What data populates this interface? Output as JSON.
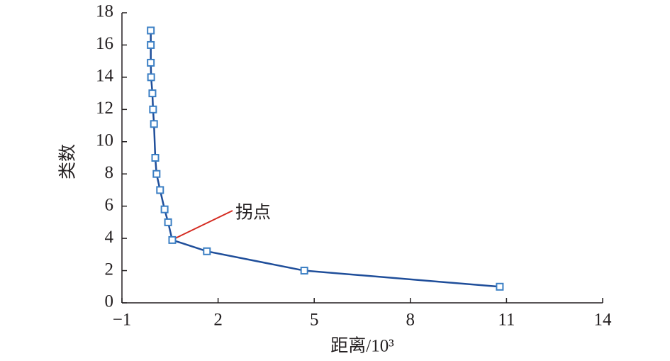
{
  "chart_data": {
    "type": "line",
    "x_label": "距离/10³",
    "y_label": "类数",
    "annotation": "拐点",
    "xlim": [
      -1,
      14
    ],
    "xticks": [
      {
        "value": -1,
        "label": "−1"
      },
      2,
      5,
      8,
      11,
      14
    ],
    "ylim": [
      0,
      18
    ],
    "yticks": [
      0,
      2,
      4,
      6,
      8,
      10,
      12,
      14,
      16,
      18
    ],
    "series": [
      {
        "color": "#1f4e9a",
        "marker_color": "#3b7fc4",
        "x": [
          -0.1,
          -0.1,
          -0.1,
          -0.09,
          -0.05,
          -0.03,
          0.0,
          0.04,
          0.08,
          0.19,
          0.33,
          0.44,
          0.57,
          1.65,
          4.69,
          10.79
        ],
        "values": [
          16.9,
          16,
          14.9,
          14,
          13,
          12,
          11.1,
          9,
          8,
          7,
          5.8,
          5,
          3.9,
          3.2,
          2,
          1
        ]
      }
    ]
  }
}
